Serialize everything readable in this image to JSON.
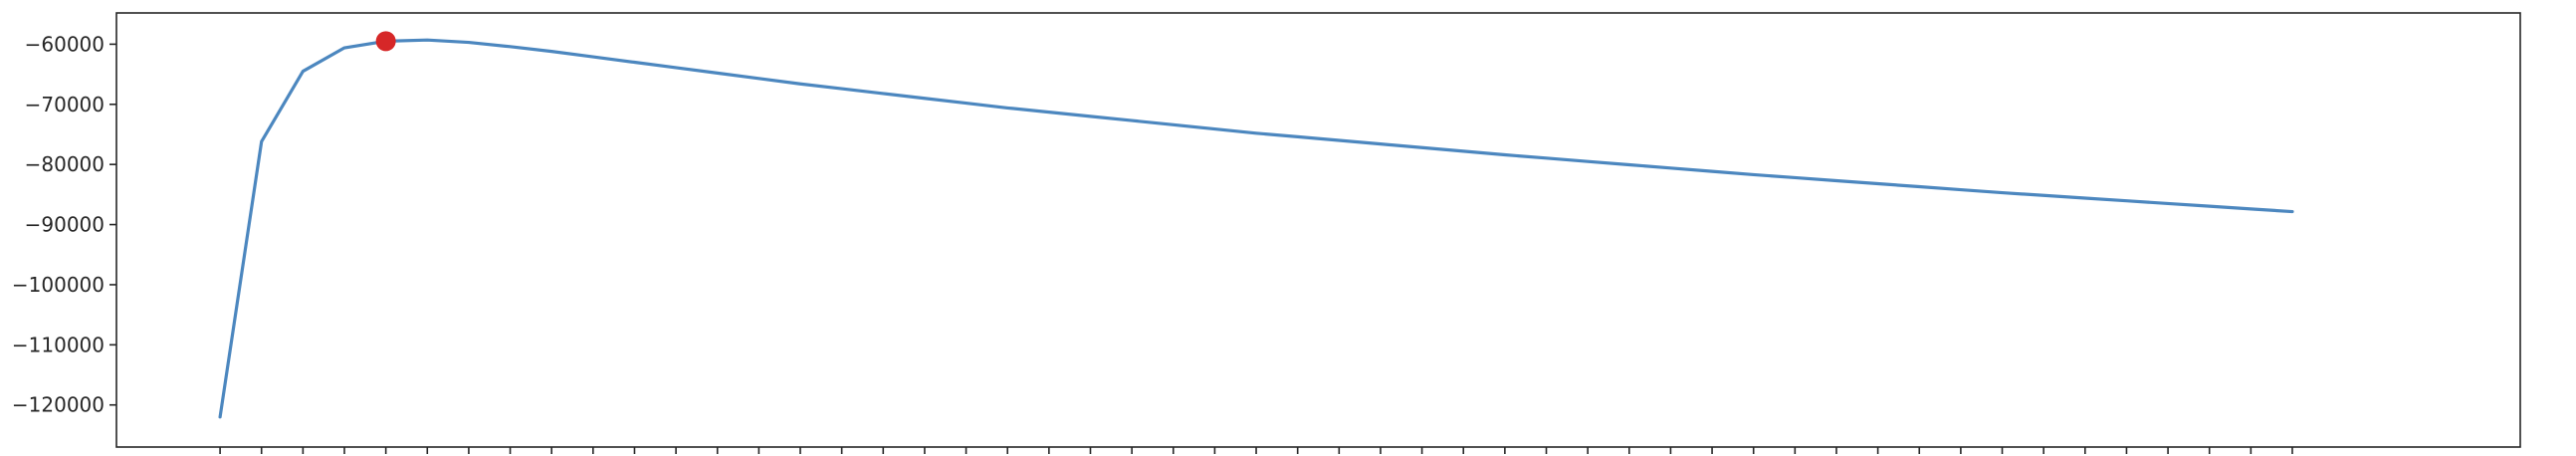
{
  "chart_data": {
    "type": "line",
    "title": "",
    "xlabel": "",
    "ylabel": "",
    "x_tick_labels_shown": false,
    "x": [
      1,
      2,
      3,
      4,
      5,
      6,
      7,
      8,
      9,
      10,
      11,
      12,
      13,
      14,
      15,
      16,
      17,
      18,
      19,
      20,
      21,
      22,
      23,
      24,
      25,
      26,
      27,
      28,
      29,
      30,
      31,
      32,
      33,
      34,
      35,
      36,
      37,
      38,
      39,
      40,
      41,
      42,
      43,
      44,
      45,
      46,
      47,
      48,
      49,
      50,
      51
    ],
    "series": [
      {
        "values": [
          -122000,
          -76200,
          -64500,
          -60600,
          -59500,
          -59300,
          -59700,
          -60400,
          -61200,
          -62100,
          -63000,
          -63900,
          -64800,
          -65700,
          -66600,
          -67400,
          -68200,
          -69000,
          -69800,
          -70600,
          -71300,
          -72000,
          -72700,
          -73400,
          -74100,
          -74800,
          -75400,
          -76000,
          -76600,
          -77200,
          -77800,
          -78400,
          -78950,
          -79500,
          -80050,
          -80600,
          -81150,
          -81700,
          -82200,
          -82700,
          -83200,
          -83700,
          -84200,
          -84700,
          -85150,
          -85600,
          -86050,
          -86500,
          -86950,
          -87400,
          -87850
        ],
        "color": "#4c87bf"
      }
    ],
    "highlight_point": {
      "x": 5,
      "y": -59500,
      "color": "#d62728"
    },
    "yticks": [
      -60000,
      -70000,
      -80000,
      -90000,
      -100000,
      -110000,
      -120000
    ],
    "ytick_labels": [
      "−60000",
      "−70000",
      "−80000",
      "−90000",
      "−100000",
      "−110000",
      "−120000"
    ],
    "xlim": [
      -1.5,
      56.5
    ],
    "ylim": [
      -127000,
      -54800
    ],
    "grid": false,
    "legend": "none"
  }
}
